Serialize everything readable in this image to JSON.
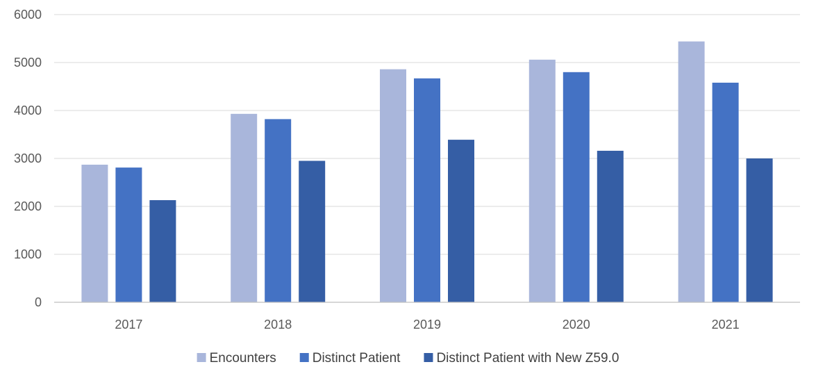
{
  "chart_data": {
    "type": "bar",
    "categories": [
      "2017",
      "2018",
      "2019",
      "2020",
      "2021"
    ],
    "series": [
      {
        "name": "Encounters",
        "values": [
          2870,
          3930,
          4860,
          5060,
          5440
        ],
        "color": "#A9B6DB"
      },
      {
        "name": "Distinct Patient",
        "values": [
          2810,
          3820,
          4670,
          4800,
          4580
        ],
        "color": "#4472C4"
      },
      {
        "name": "Distinct Patient with New Z59.0",
        "values": [
          2130,
          2950,
          3390,
          3160,
          3000
        ],
        "color": "#355EA5"
      }
    ],
    "ylim": [
      0,
      6000
    ],
    "yticks": [
      "0",
      "1000",
      "2000",
      "3000",
      "4000",
      "5000",
      "6000"
    ],
    "grid": true,
    "legend_position": "bottom"
  }
}
